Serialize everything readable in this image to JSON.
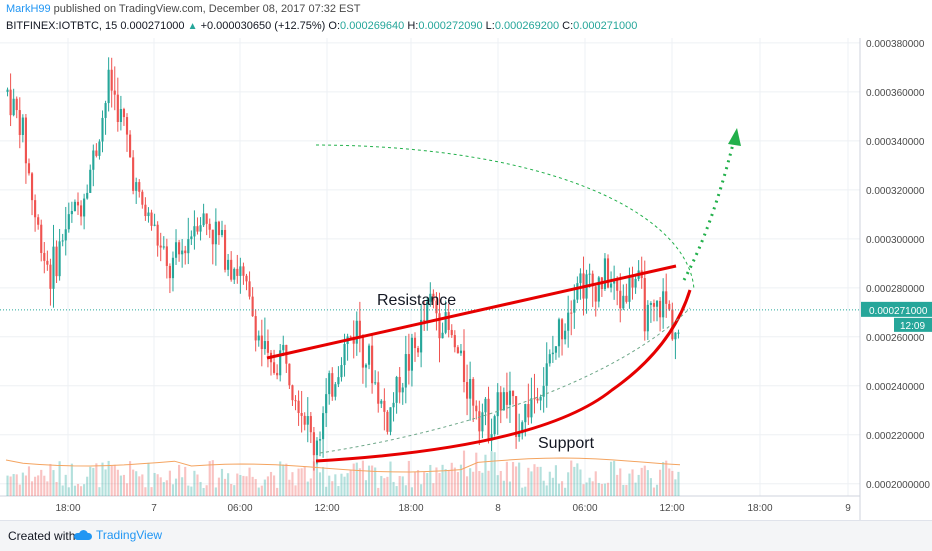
{
  "header": {
    "author": "MarkH99",
    "published": " published on TradingView.com, December 08, 2017 07:32 EST",
    "symbol": "BITFINEX:IOTBTC, 15",
    "last": "0.000271000",
    "arrow": "▲",
    "change": "+0.000030650 (+12.75%)",
    "o_label": "O:",
    "o_value": "0.000269640",
    "h_label": "H:",
    "h_value": "0.000272090",
    "l_label": "L:",
    "l_value": "0.000269200",
    "c_label": "C:",
    "c_value": "0.000271000"
  },
  "footer": {
    "created_label": "Created with",
    "brand": "TradingView"
  },
  "chart_data": {
    "type": "candlestick",
    "interval": "15",
    "ylim": [
      0.000195,
      0.000382
    ],
    "y_ticks": [
      {
        "value": 0.0002,
        "label": "0.0002000000"
      },
      {
        "value": 0.00022,
        "label": "0.000220000"
      },
      {
        "value": 0.00024,
        "label": "0.000240000"
      },
      {
        "value": 0.00026,
        "label": "0.000260000"
      },
      {
        "value": 0.00028,
        "label": "0.000280000"
      },
      {
        "value": 0.0003,
        "label": "0.000300000"
      },
      {
        "value": 0.00032,
        "label": "0.000320000"
      },
      {
        "value": 0.00034,
        "label": "0.000340000"
      },
      {
        "value": 0.00036,
        "label": "0.000360000"
      },
      {
        "value": 0.00038,
        "label": "0.000380000"
      }
    ],
    "x_ticks": [
      "18:00",
      "7",
      "06:00",
      "12:00",
      "18:00",
      "8",
      "06:00",
      "12:00",
      "18:00",
      "9"
    ],
    "last_price": {
      "value": 0.000271,
      "label": "0.000271000",
      "countdown": "12:09"
    },
    "price_path": [
      [
        0.00036,
        0.00036
      ],
      [
        0.00034,
        0.00035
      ],
      [
        0.0003,
        0.00031
      ],
      [
        0.00028,
        0.00029
      ],
      [
        0.0003,
        0.00031
      ],
      [
        0.00031,
        0.00032
      ],
      [
        0.00033,
        0.00034
      ],
      [
        0.00036,
        0.00037
      ],
      [
        0.00034,
        0.00035
      ],
      [
        0.00031,
        0.00032
      ],
      [
        0.0003,
        0.00031
      ],
      [
        0.00028,
        0.00029
      ],
      [
        0.00029,
        0.0003
      ],
      [
        0.00031,
        0.00031
      ],
      [
        0.0003,
        0.00031
      ],
      [
        0.00029,
        0.0003
      ],
      [
        0.00028,
        0.00029
      ],
      [
        0.00026,
        0.00027
      ],
      [
        0.00024,
        0.00025
      ],
      [
        0.00025,
        0.00026
      ],
      [
        0.00023,
        0.00024
      ],
      [
        0.00021,
        0.00022
      ],
      [
        0.00023,
        0.00024
      ],
      [
        0.00025,
        0.00026
      ],
      [
        0.00026,
        0.00027
      ],
      [
        0.00024,
        0.00025
      ],
      [
        0.00022,
        0.00023
      ],
      [
        0.00024,
        0.00025
      ],
      [
        0.00025,
        0.00026
      ],
      [
        0.00027,
        0.00028
      ],
      [
        0.00026,
        0.00027
      ],
      [
        0.00025,
        0.00025
      ],
      [
        0.00023,
        0.00024
      ],
      [
        0.00022,
        0.00023
      ],
      [
        0.00023,
        0.00024
      ],
      [
        0.00022,
        0.00023
      ],
      [
        0.00023,
        0.00024
      ],
      [
        0.00024,
        0.00025
      ],
      [
        0.00026,
        0.00027
      ],
      [
        0.00028,
        0.00029
      ],
      [
        0.00028,
        0.00028
      ],
      [
        0.00028,
        0.00029
      ],
      [
        0.00027,
        0.00028
      ],
      [
        0.00028,
        0.00029
      ],
      [
        0.00026,
        0.00027
      ],
      [
        0.00027,
        0.00028
      ],
      [
        0.00026,
        0.00026
      ]
    ],
    "annotations": [
      {
        "text": "Resistance",
        "kind": "resistance line"
      },
      {
        "text": "Support",
        "kind": "support curve"
      }
    ],
    "colors": {
      "up": "#26a69a",
      "down": "#ef5350",
      "trend": "#e60000",
      "projection": "#22b04b",
      "avg": "#f4a460",
      "grid": "#eef0f4"
    }
  }
}
